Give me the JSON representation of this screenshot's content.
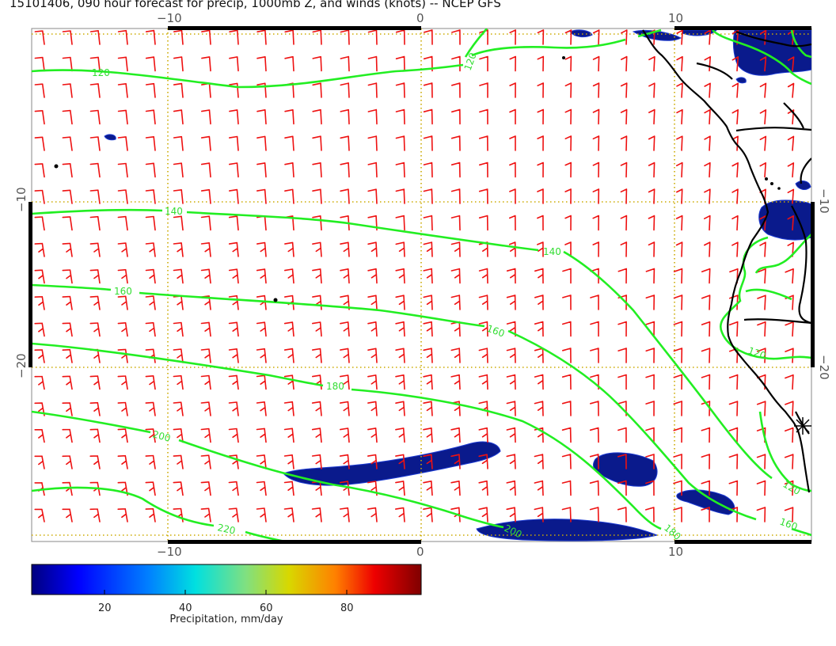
{
  "title": "15101406, 090 hour forecast for precip, 1000mb Z, and winds (knots) -- NCEP GFS",
  "colors": {
    "contour": "#22ee22",
    "barb": "#ee1111",
    "coast": "#000000",
    "grid": "#ccaa00",
    "precip": "#0a1a8c"
  },
  "axes": {
    "x_ticks": [
      "−10",
      "0",
      "10"
    ],
    "y_ticks": [
      "−10",
      "−20"
    ]
  },
  "contour_labels": [
    "120",
    "120",
    "140",
    "140",
    "160",
    "160",
    "180",
    "200",
    "220",
    "200",
    "180",
    "120",
    "120",
    "160"
  ],
  "colorbar": {
    "ticks": [
      "20",
      "40",
      "60",
      "80"
    ],
    "label": "Precipitation, mm/day",
    "colors": [
      "#00007f",
      "#0000ff",
      "#007fff",
      "#00ffff",
      "#7fff7f",
      "#cccc00",
      "#ff7f00",
      "#ff0000",
      "#7f0000"
    ]
  }
}
